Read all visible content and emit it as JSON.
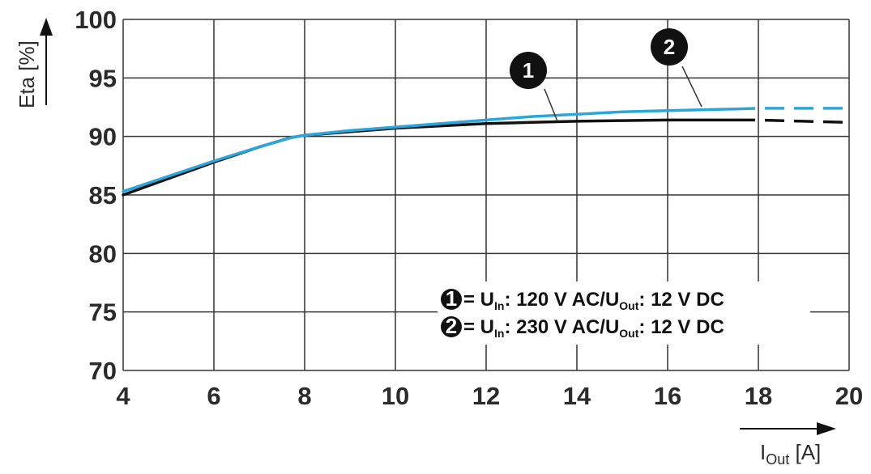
{
  "chart_data": {
    "type": "line",
    "ylabel": "Eta [%]",
    "xlabel_main": "I",
    "xlabel_sub": "Out",
    "xlabel_unit": " [A]",
    "xlim": [
      4,
      20
    ],
    "ylim": [
      70,
      100
    ],
    "xticks": [
      "4",
      "6",
      "8",
      "10",
      "12",
      "14",
      "16",
      "18",
      "20"
    ],
    "yticks": [
      "70",
      "75",
      "80",
      "85",
      "90",
      "95",
      "100"
    ],
    "grid": true,
    "series": [
      {
        "name": "1",
        "color": "#111111",
        "x": [
          4,
          5,
          6,
          7,
          7.7,
          8,
          9,
          10,
          11,
          12,
          13,
          14,
          15,
          16,
          17,
          17.5
        ],
        "y": [
          85.0,
          86.4,
          87.8,
          89.1,
          89.9,
          90.1,
          90.4,
          90.7,
          90.9,
          91.1,
          91.2,
          91.3,
          91.35,
          91.4,
          91.4,
          91.4
        ],
        "dashed_x": [
          17.5,
          18,
          19,
          20
        ],
        "dashed_y": [
          91.4,
          91.4,
          91.3,
          91.2
        ]
      },
      {
        "name": "2",
        "color": "#2aa6dc",
        "x": [
          4,
          5,
          6,
          7,
          7.7,
          8,
          9,
          10,
          11,
          12,
          13,
          14,
          15,
          16,
          17,
          17.5
        ],
        "y": [
          85.3,
          86.6,
          87.9,
          89.1,
          89.9,
          90.1,
          90.5,
          90.8,
          91.1,
          91.4,
          91.7,
          91.9,
          92.1,
          92.2,
          92.3,
          92.35
        ],
        "dashed_x": [
          17.5,
          18,
          19,
          20
        ],
        "dashed_y": [
          92.35,
          92.4,
          92.4,
          92.4
        ]
      }
    ],
    "legend": {
      "placement": "bottom-right",
      "entries": [
        {
          "marker": "1",
          "prefix": " = U",
          "sub1": "In",
          "mid": ": 120 V AC/U",
          "sub2": "Out",
          "suffix": ": 12 V DC"
        },
        {
          "marker": "2",
          "prefix": " = U",
          "sub1": "In",
          "mid": ": 230 V AC/U",
          "sub2": "Out",
          "suffix": ": 12 V DC"
        }
      ]
    },
    "callouts": [
      "1",
      "2"
    ]
  }
}
